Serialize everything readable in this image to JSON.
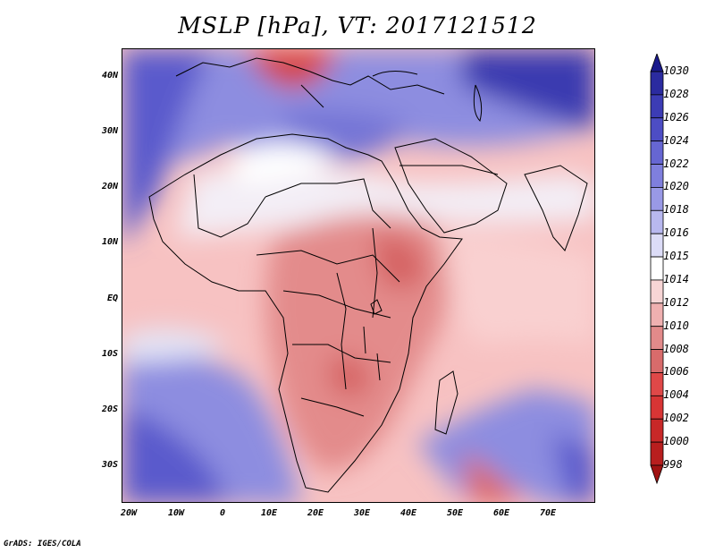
{
  "title": "MSLP [hPa], VT: 2017121512",
  "footer": "GrADS: IGES/COLA",
  "map": {
    "lat_labels": [
      "40N",
      "30N",
      "20N",
      "10N",
      "EQ",
      "10S",
      "20S",
      "30S"
    ],
    "lon_labels": [
      "20W",
      "10W",
      "0",
      "10E",
      "20E",
      "30E",
      "40E",
      "50E",
      "60E",
      "70E"
    ]
  },
  "colorbar": {
    "levels": [
      "1030",
      "1028",
      "1026",
      "1024",
      "1022",
      "1020",
      "1018",
      "1016",
      "1015",
      "1014",
      "1012",
      "1010",
      "1008",
      "1006",
      "1004",
      "1002",
      "1000",
      "998"
    ],
    "colors": [
      "#1a1a8c",
      "#2b2ba0",
      "#3c3cb5",
      "#4d4dc4",
      "#6666d2",
      "#7f7fdd",
      "#9999e6",
      "#b8b8ef",
      "#dcdcf7",
      "#ffffff",
      "#f7d5d5",
      "#efb0b0",
      "#e28a8a",
      "#d86b6b",
      "#e04848",
      "#d83535",
      "#c82828",
      "#b81e1e",
      "#a01212"
    ]
  }
}
